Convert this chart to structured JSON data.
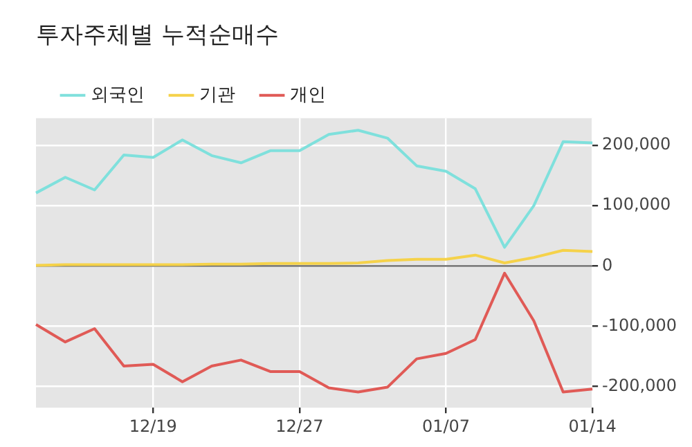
{
  "chart_data": {
    "type": "line",
    "title": "투자주체별 누적순매수",
    "categories": [
      null,
      null,
      null,
      null,
      "12/19",
      null,
      null,
      null,
      null,
      "12/27",
      null,
      null,
      null,
      null,
      "01/07",
      null,
      null,
      null,
      null,
      "01/14"
    ],
    "series": [
      {
        "name": "외국인",
        "color": "#7fe0dc",
        "values": [
          121000,
          147000,
          126000,
          184000,
          180000,
          209000,
          183000,
          171000,
          191000,
          191000,
          218000,
          225000,
          212000,
          166000,
          157000,
          128000,
          31000,
          100000,
          206000,
          204000
        ]
      },
      {
        "name": "기관",
        "color": "#f5d24a",
        "values": [
          1000,
          2000,
          2000,
          2000,
          2000,
          2000,
          3000,
          3000,
          4000,
          4000,
          4000,
          5000,
          9000,
          11000,
          11000,
          18000,
          5000,
          14000,
          26000,
          24000
        ]
      },
      {
        "name": "개인",
        "color": "#e05a56",
        "values": [
          -97000,
          -126000,
          -104000,
          -166000,
          -163000,
          -192000,
          -166000,
          -156000,
          -175000,
          -175000,
          -202000,
          -209000,
          -201000,
          -154000,
          -145000,
          -122000,
          -12000,
          -91000,
          -209000,
          -204000
        ]
      }
    ],
    "ylim": [
      -235000,
      245000
    ],
    "yticks": [
      {
        "value": -200000,
        "label": "-200,000"
      },
      {
        "value": -100000,
        "label": "-100,000"
      },
      {
        "value": 0,
        "label": "0"
      },
      {
        "value": 100000,
        "label": "100,000"
      },
      {
        "value": 200000,
        "label": "200,000"
      }
    ],
    "ref_lines": [
      {
        "axis": "y",
        "value": 0,
        "color": "#666666"
      }
    ],
    "grid": true,
    "legend": "top left",
    "marker": "none",
    "line_style": "solid"
  }
}
